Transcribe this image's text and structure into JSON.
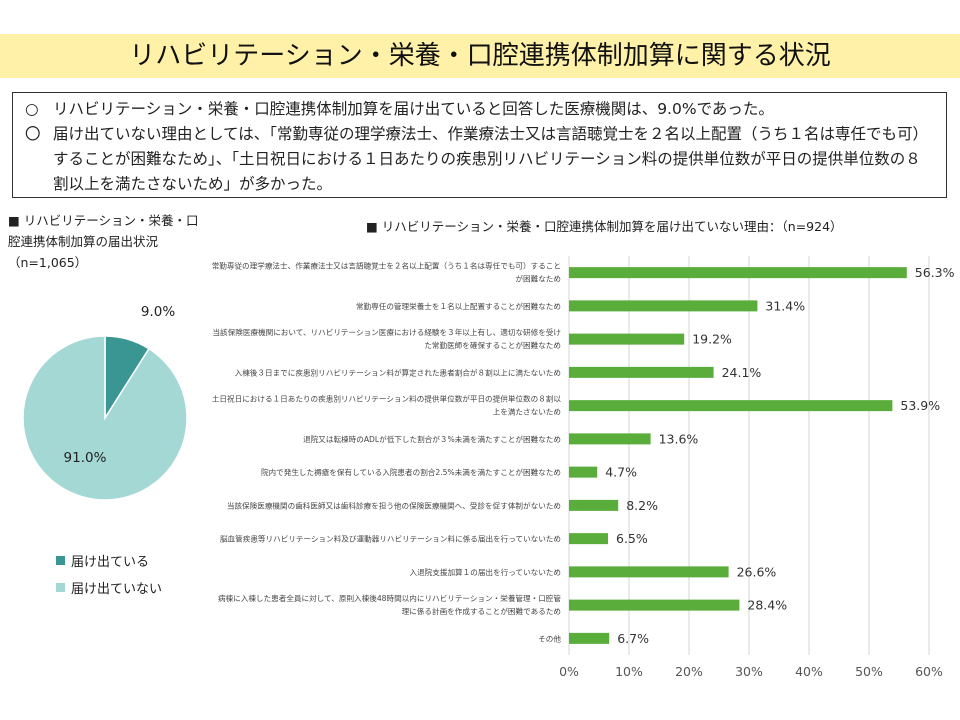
{
  "title": "リハビリテーション・栄養・口腔連携体制加算に関する状況",
  "summary": [
    {
      "mark": "○",
      "text": "リハビリテーション・栄養・口腔連携体制加算を届け出ていると回答した医療機関は、9.0%であった。"
    },
    {
      "mark": "〇",
      "text": "届け出ていない理由としては、「常勤専従の理学療法士、作業療法士又は言語聴覚士を２名以上配置（うち１名は専任でも可）することが困難なため」、「土日祝日における１日あたりの疾患別リハビリテーション料の提供単位数が平日の提供単位数の８割以上を満たさないため」が多かった。"
    }
  ],
  "chart_data": [
    {
      "type": "pie",
      "title": "■ リハビリテーション・栄養・口腔連携体制加算の届出状況（n=1,065）",
      "categories": [
        "届け出ている",
        "届け出ていない"
      ],
      "values": [
        9.0,
        91.0
      ],
      "labels": [
        "9.0%",
        "91.0%"
      ],
      "colors": [
        "#3a9692",
        "#a4d8d5"
      ],
      "legend_position": "bottom-left"
    },
    {
      "type": "bar",
      "orientation": "horizontal",
      "title": "■ リハビリテーション・栄養・口腔連携体制加算を届け出ていない理由：（n=924）",
      "categories": [
        "常勤専従の理学療法士、作業療法士又は言語聴覚士を２名以上配置（うち１名は専任でも可）することが困難なため",
        "常勤専任の管理栄養士を１名以上配置することが困難なため",
        "当該保険医療機関において、リハビリテーション医療における経験を３年以上有し、適切な研修を受けた常勤医師を確保することが困難なため",
        "入棟後３日までに疾患別リハビリテーション料が算定された患者割合が８割以上に満たないため",
        "土日祝日における１日あたりの疾患別リハビリテーション料の提供単位数が平日の提供単位数の８割以上を満たさないため",
        "退院又は転棟時のADLが低下した割合が３%未満を満たすことが困難なため",
        "院内で発生した褥瘡を保有している入院患者の割合2.5%未満を満たすことが困難なため",
        "当該保険医療機関の歯科医師又は歯科診療を担う他の保険医療機関へ、受診を促す体制がないため",
        "脳血管疾患等リハビリテーション料及び運動器リハビリテーション料に係る届出を行っていないため",
        "入退院支援加算１の届出を行っていないため",
        "病棟に入棟した患者全員に対して、原則入棟後48時間以内にリハビリテーション・栄養管理・口腔管理に係る計画を作成することが困難であるため",
        "その他"
      ],
      "values": [
        56.3,
        31.4,
        19.2,
        24.1,
        53.9,
        13.6,
        4.7,
        8.2,
        6.5,
        26.6,
        28.4,
        6.7
      ],
      "data_labels": [
        "56.3%",
        "31.4%",
        "19.2%",
        "24.1%",
        "53.9%",
        "13.6%",
        "4.7%",
        "8.2%",
        "6.5%",
        "26.6%",
        "28.4%",
        "6.7%"
      ],
      "xlim": [
        0,
        60
      ],
      "ticks": [
        "0%",
        "10%",
        "20%",
        "30%",
        "40%",
        "50%",
        "60%"
      ],
      "grid": true,
      "bar_color": "#5aad3a"
    }
  ]
}
